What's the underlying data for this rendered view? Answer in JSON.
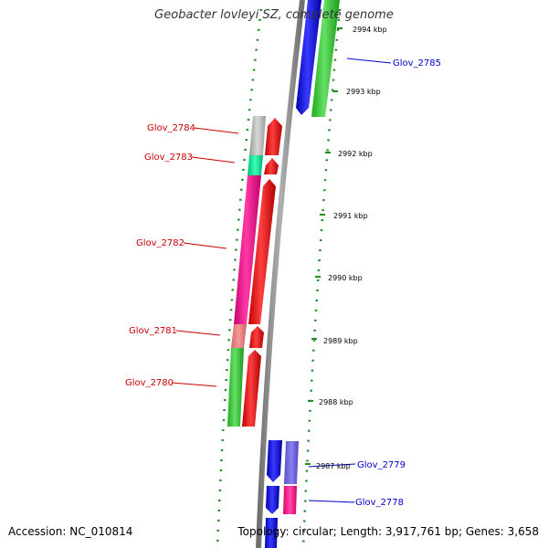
{
  "title": "Geobacter lovleyi SZ, complete genome",
  "accession": "Accession: NC_010814",
  "topology": "Topology: circular; Length: 3,917,761 bp; Genes: 3,658",
  "colors": {
    "forward_cds": "#ff0000",
    "reverse_cds": "#0000ff",
    "forward_label": "#cc0000",
    "reverse_label": "#0000cc",
    "backbone": "#808080",
    "gc_ticks": "#1e8c1e"
  },
  "tick_labels": [
    "2994 kbp",
    "2993 kbp",
    "2992 kbp",
    "2991 kbp",
    "2990 kbp",
    "2989 kbp",
    "2988 kbp",
    "2987 kbp"
  ],
  "gene_labels": {
    "glov_2785": "Glov_2785",
    "glov_2784": "Glov_2784",
    "glov_2783": "Glov_2783",
    "glov_2782": "Glov_2782",
    "glov_2781": "Glov_2781",
    "glov_2780": "Glov_2780",
    "glov_2779": "Glov_2779",
    "glov_2778": "Glov_2778"
  }
}
